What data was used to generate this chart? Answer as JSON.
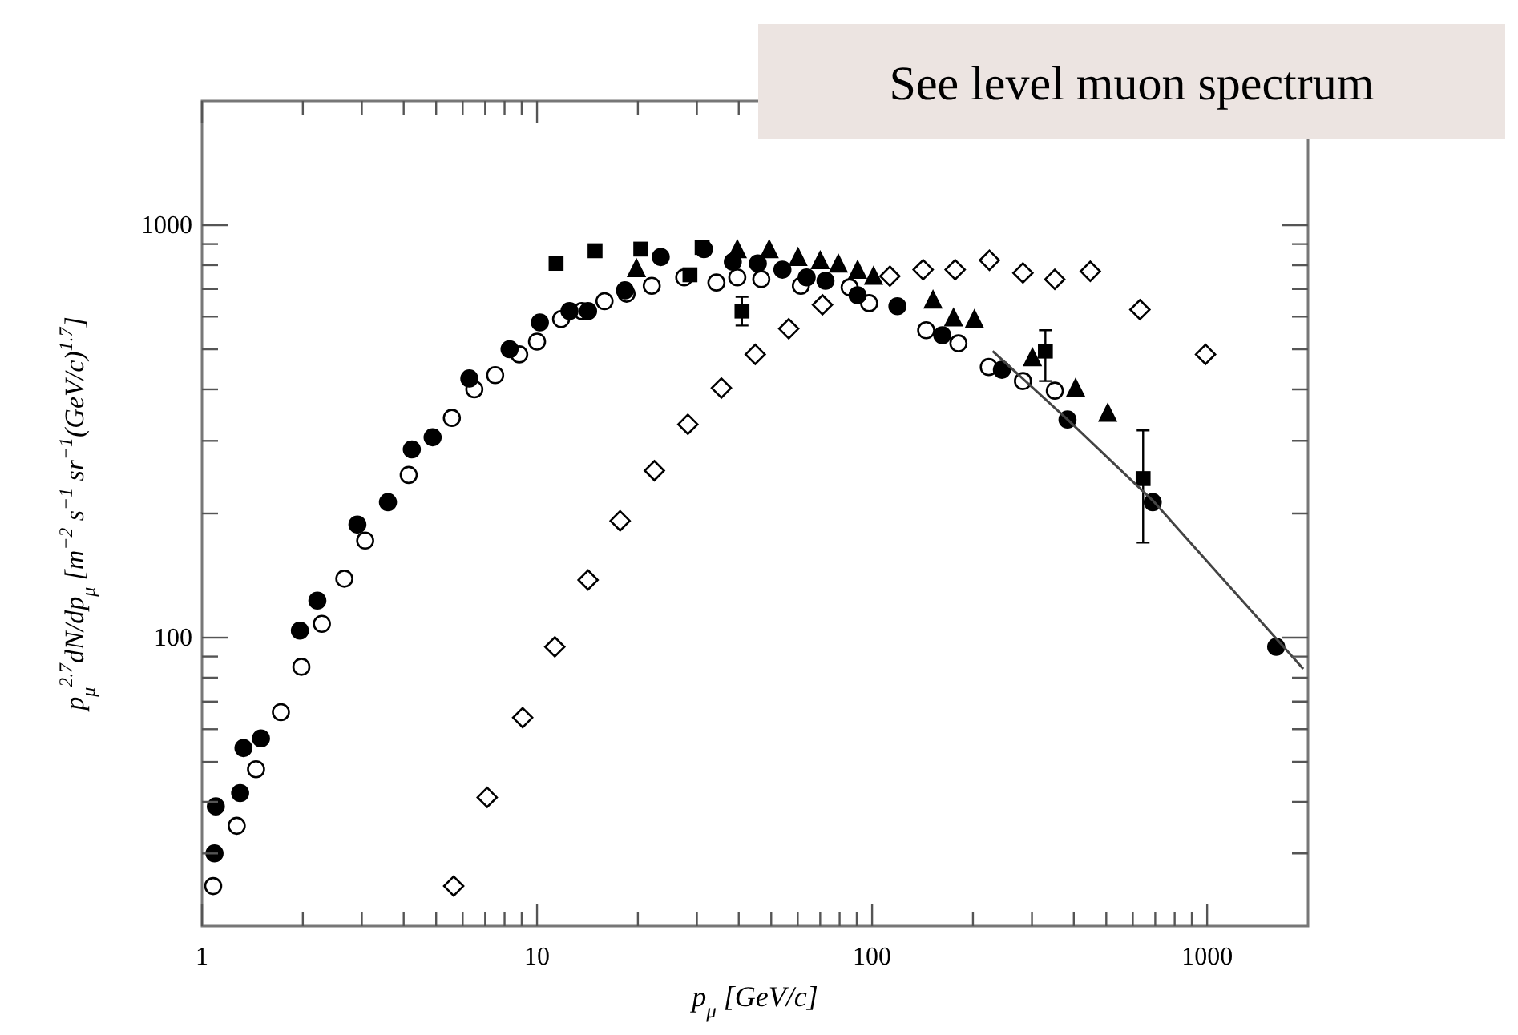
{
  "chart_data": {
    "type": "scatter",
    "title": "See level muon spectrum",
    "xlabel": "p$_{μ}$   [GeV/c]",
    "ylabel": "p$_{μ}$$^{2.7}$dN/dp$_{μ}$  [m$^{−2}$ s$^{−1}$ sr$^{−1}$(GeV/c)$^{1.7}$]",
    "log": "xy",
    "xlim": [
      1,
      2000
    ],
    "ylim": [
      20,
      2000
    ],
    "xticks": [
      1,
      {
        "value": 2,
        "label": null
      },
      {
        "value": 3,
        "label": null
      },
      {
        "value": 4,
        "label": null
      },
      {
        "value": 5,
        "label": null
      },
      {
        "value": 6,
        "label": null
      },
      {
        "value": 7,
        "label": null
      },
      {
        "value": 8,
        "label": null
      },
      {
        "value": 9,
        "label": null
      },
      10,
      {
        "value": 20,
        "label": null
      },
      {
        "value": 30,
        "label": null
      },
      {
        "value": 40,
        "label": null
      },
      {
        "value": 50,
        "label": null
      },
      {
        "value": 60,
        "label": null
      },
      {
        "value": 70,
        "label": null
      },
      {
        "value": 80,
        "label": null
      },
      {
        "value": 90,
        "label": null
      },
      100,
      {
        "value": 200,
        "label": null
      },
      {
        "value": 300,
        "label": null
      },
      {
        "value": 400,
        "label": null
      },
      {
        "value": 500,
        "label": null
      },
      {
        "value": 600,
        "label": null
      },
      {
        "value": 700,
        "label": null
      },
      {
        "value": 800,
        "label": null
      },
      {
        "value": 900,
        "label": null
      },
      1000
    ],
    "yticks": [
      {
        "value": 30,
        "label": null
      },
      {
        "value": 40,
        "label": null
      },
      {
        "value": 50,
        "label": null
      },
      {
        "value": 60,
        "label": null
      },
      {
        "value": 70,
        "label": null
      },
      {
        "value": 80,
        "label": null
      },
      {
        "value": 90,
        "label": null
      },
      100,
      {
        "value": 200,
        "label": null
      },
      {
        "value": 300,
        "label": null
      },
      {
        "value": 400,
        "label": null
      },
      {
        "value": 500,
        "label": null
      },
      {
        "value": 600,
        "label": null
      },
      {
        "value": 700,
        "label": null
      },
      {
        "value": 800,
        "label": null
      },
      {
        "value": 900,
        "label": null
      },
      1000
    ],
    "series": [
      {
        "marker": "circle",
        "color": "#000000",
        "x": [
          1.08,
          1.27,
          1.45,
          1.72,
          1.98,
          2.28,
          2.66,
          3.07,
          4.14,
          5.57,
          6.5,
          7.5,
          8.85,
          10,
          11.8,
          13.6,
          15.9,
          18.5,
          22,
          27.5,
          34.3,
          39.6,
          46.7,
          61.3,
          85.7,
          98,
          145,
          181,
          223,
          282,
          351
        ],
        "values": [
          25,
          35,
          48,
          66,
          85,
          108,
          139,
          172,
          248,
          341,
          400,
          433,
          486,
          522,
          592,
          619,
          654,
          682,
          713,
          747,
          726,
          747,
          740,
          713,
          707,
          647,
          556,
          517,
          453,
          419,
          397
        ]
      },
      {
        "marker": "diamond",
        "color": "#000000",
        "x": [
          5.64,
          7.1,
          9.06,
          11.3,
          14.2,
          17.7,
          22.4,
          28.2,
          35.5,
          44.8,
          56.4,
          71.1,
          113,
          142,
          177,
          224,
          282,
          351,
          448,
          630,
          989
        ],
        "values": [
          25,
          41,
          64,
          95,
          138,
          192,
          254,
          329,
          403,
          486,
          561,
          641,
          752,
          780,
          780,
          822,
          766,
          739,
          773,
          624,
          486
        ]
      },
      {
        "marker": "circle",
        "color": "#000000",
        "x": [
          1.09,
          1.1,
          1.3,
          1.33,
          1.5,
          1.96,
          2.21,
          2.91,
          3.59,
          4.23,
          4.88,
          6.28,
          8.28,
          10.2,
          12.5,
          14.2,
          18.3,
          23.4,
          31.5,
          38.4,
          45.6,
          54,
          63.8,
          72.6,
          90.5,
          119,
          162,
          244,
          383,
          688,
          1607
        ],
        "values": [
          30,
          39,
          42,
          54,
          57,
          104,
          123,
          188,
          213,
          286,
          306,
          425,
          500,
          581,
          619,
          619,
          695,
          837,
          875,
          815,
          808,
          780,
          747,
          733,
          676,
          636,
          541,
          446,
          338,
          213,
          95
        ]
      },
      {
        "marker": "square",
        "color": "#000000",
        "x": [
          11.4,
          14.9,
          20.4,
          28.6,
          31.1,
          40.9,
          329,
          644
        ],
        "values": [
          808,
          867,
          875,
          758,
          883,
          619,
          495,
          243
        ],
        "errors": [
          null,
          null,
          null,
          null,
          null,
          [
            571,
            670
          ],
          [
            419,
            556
          ],
          [
            170,
            318
          ]
        ]
      },
      {
        "marker": "triangle",
        "color": "#000000",
        "x": [
          19.8,
          39.6,
          49.3,
          60.1,
          70,
          79.3,
          90.5,
          101,
          152,
          175,
          202,
          301,
          405,
          505
        ],
        "values": [
          780,
          867,
          867,
          830,
          815,
          800,
          773,
          747,
          654,
          592,
          587,
          474,
          400,
          348
        ]
      },
      {
        "type": "line",
        "marker": "none",
        "color": "#444444",
        "x": [
          229,
          383,
          688,
          1936
        ],
        "values": [
          495,
          338,
          215,
          84
        ]
      }
    ]
  }
}
